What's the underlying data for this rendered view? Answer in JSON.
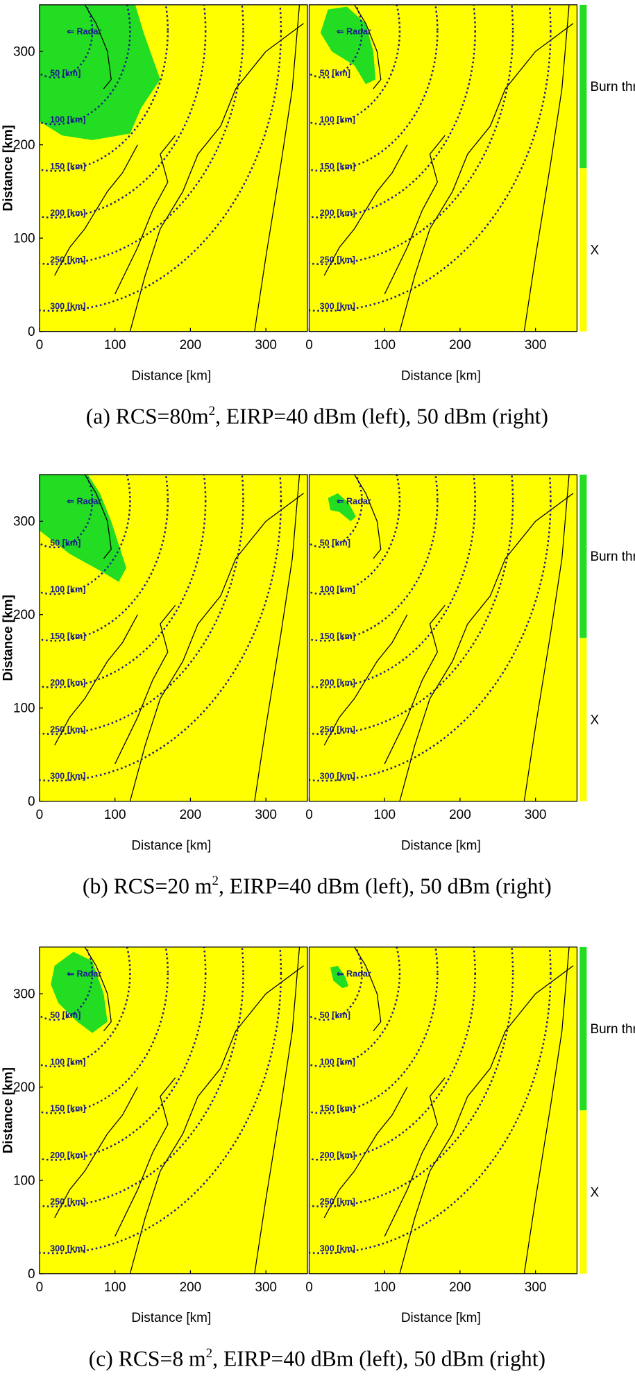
{
  "axes": {
    "xlabel": "Distance [km]",
    "ylabel": "Distance [km]",
    "xticks": [
      0,
      100,
      200,
      300
    ],
    "yticks": [
      0,
      100,
      200,
      300
    ],
    "xlim": [
      0,
      355
    ],
    "ylim": [
      0,
      350
    ]
  },
  "rings": [
    {
      "radius": 50,
      "label": "50 [km]"
    },
    {
      "radius": 100,
      "label": "100 [km]"
    },
    {
      "radius": 150,
      "label": "150 [km]"
    },
    {
      "radius": 200,
      "label": "200 [km]"
    },
    {
      "radius": 250,
      "label": "250 [km]"
    },
    {
      "radius": 300,
      "label": "300 [km]"
    }
  ],
  "radar_label": "⇐ Radar",
  "colorbar": {
    "labels": [
      "Burn thr",
      "X"
    ]
  },
  "rows": [
    {
      "caption": {
        "prefix": "(a)  RCS=80m",
        "sup": "2",
        "suffix": ",  EIRP=40  dBm  (left),  50  dBm  (right)"
      }
    },
    {
      "caption": {
        "prefix": "(b)  RCS=20  m",
        "sup": "2",
        "suffix": ",  EIRP=40  dBm  (left),  50  dBm  (right)"
      }
    },
    {
      "caption": {
        "prefix": "(c)  RCS=8  m",
        "sup": "2",
        "suffix": ",  EIRP=40  dBm  (left),  50  dBm  (right)"
      }
    }
  ]
}
